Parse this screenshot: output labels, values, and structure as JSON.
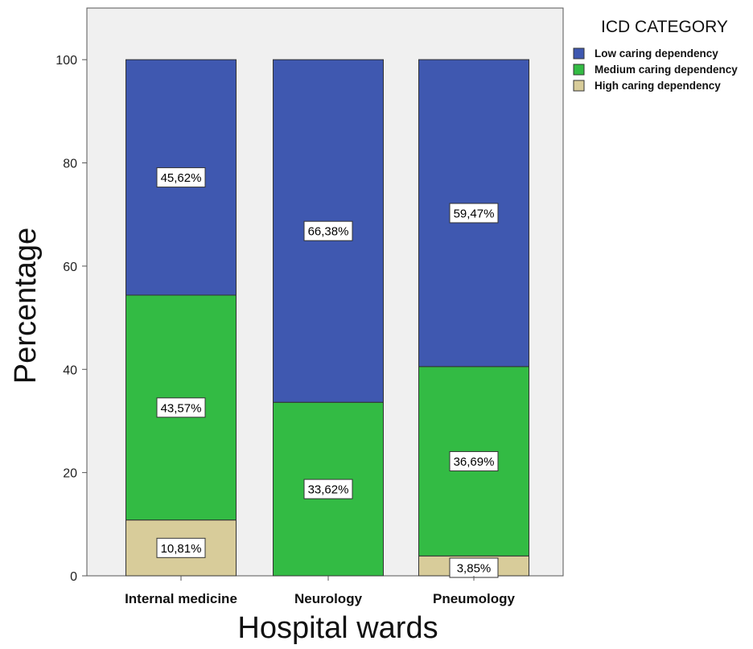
{
  "chart_data": {
    "type": "bar",
    "stacked": true,
    "xlabel": "Hospital wards",
    "ylabel": "Percentage",
    "ylim": [
      0,
      110
    ],
    "yticks": [
      0,
      20,
      40,
      60,
      80,
      100
    ],
    "categories": [
      "Internal medicine",
      "Neurology",
      "Pneumology"
    ],
    "legend": {
      "title": "ICD CATEGORY",
      "placement": "top-right"
    },
    "series": [
      {
        "name": "High caring dependency",
        "color": "#d8cc9a",
        "values": [
          10.81,
          0,
          3.85
        ],
        "labels": [
          "10,81%",
          "",
          "3,85%"
        ]
      },
      {
        "name": "Medium caring dependency",
        "color": "#33bb44",
        "values": [
          43.57,
          33.62,
          36.69
        ],
        "labels": [
          "43,57%",
          "33,62%",
          "36,69%"
        ]
      },
      {
        "name": "Low caring dependency",
        "color": "#3f58b0",
        "values": [
          45.62,
          66.38,
          59.47
        ],
        "labels": [
          "45,62%",
          "66,38%",
          "59,47%"
        ]
      }
    ],
    "legend_order": [
      "Low caring dependency",
      "Medium caring dependency",
      "High caring dependency"
    ],
    "plot_background": "#f0f0f0",
    "grid": false
  }
}
